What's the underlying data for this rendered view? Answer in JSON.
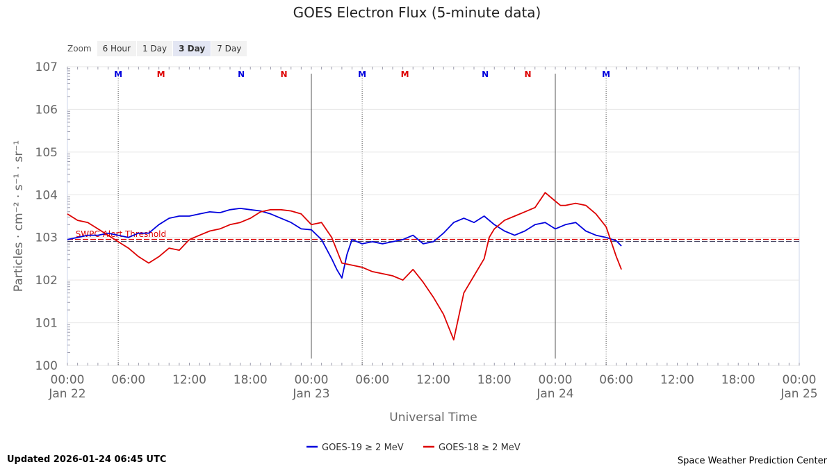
{
  "title": "GOES Electron Flux (5-minute data)",
  "zoom": {
    "label": "Zoom",
    "buttons": [
      "6 Hour",
      "1 Day",
      "3 Day",
      "7 Day"
    ],
    "active": "3 Day"
  },
  "footer": {
    "updated": "Updated 2026-01-24 06:45 UTC",
    "credit": "Space Weather Prediction Center"
  },
  "chart_data": {
    "type": "line",
    "title": "GOES Electron Flux (5-minute data)",
    "xlabel": "Universal Time",
    "ylabel": "Particles · cm⁻² · s⁻¹ · sr⁻¹",
    "y_scale": "log",
    "y_range_exponent": [
      0,
      7
    ],
    "y_ticks": [
      "10",
      "10",
      "10",
      "10",
      "10",
      "10",
      "10",
      "10"
    ],
    "y_tick_exponents": [
      "0",
      "1",
      "2",
      "3",
      "4",
      "5",
      "6",
      "7"
    ],
    "x_range_hours": [
      0,
      72
    ],
    "x_ticks": [
      "00:00",
      "06:00",
      "12:00",
      "18:00",
      "00:00",
      "06:00",
      "12:00",
      "18:00",
      "00:00",
      "06:00",
      "12:00",
      "18:00",
      "00:00"
    ],
    "x_day_labels": [
      "Jan 22",
      "Jan 23",
      "Jan 24",
      "Jan 25"
    ],
    "x_day_label_hours": [
      0,
      24,
      48,
      72
    ],
    "day_boundaries_hours": [
      24,
      48
    ],
    "threshold": {
      "label": "SWPC Alert Threshold",
      "value_exponent": 2.93,
      "color": "#dd0000"
    },
    "markers": [
      {
        "label": "M",
        "hour": 5,
        "color": "#0000dd"
      },
      {
        "label": "M",
        "hour": 9.2,
        "color": "#dd0000"
      },
      {
        "label": "N",
        "hour": 17.1,
        "color": "#0000dd"
      },
      {
        "label": "N",
        "hour": 21.3,
        "color": "#dd0000"
      },
      {
        "label": "M",
        "hour": 29,
        "color": "#0000dd"
      },
      {
        "label": "M",
        "hour": 33.2,
        "color": "#dd0000"
      },
      {
        "label": "N",
        "hour": 41.1,
        "color": "#0000dd"
      },
      {
        "label": "N",
        "hour": 45.3,
        "color": "#dd0000"
      },
      {
        "label": "M",
        "hour": 53,
        "color": "#0000dd"
      }
    ],
    "series": [
      {
        "name": "GOES-19 ≥ 2 MeV",
        "color": "#0000dd",
        "x": [
          0,
          1,
          2,
          3,
          4,
          5,
          6,
          7,
          8,
          9,
          10,
          11,
          12,
          13,
          14,
          15,
          16,
          17,
          18,
          19,
          20,
          21,
          22,
          23,
          24,
          25,
          26,
          26.5,
          27,
          27.5,
          28,
          29,
          30,
          31,
          32,
          33,
          34,
          35,
          36,
          37,
          38,
          39,
          40,
          41,
          42,
          43,
          44,
          45,
          46,
          47,
          48,
          49,
          50,
          51,
          52,
          53,
          54,
          54.5
        ],
        "y": [
          2.95,
          3.0,
          3.05,
          3.05,
          3.1,
          3.05,
          3.0,
          3.1,
          3.1,
          3.3,
          3.45,
          3.5,
          3.5,
          3.55,
          3.6,
          3.58,
          3.65,
          3.68,
          3.65,
          3.62,
          3.55,
          3.45,
          3.35,
          3.2,
          3.18,
          2.95,
          2.5,
          2.25,
          2.05,
          2.6,
          2.95,
          2.85,
          2.9,
          2.85,
          2.9,
          2.95,
          3.05,
          2.85,
          2.9,
          3.1,
          3.35,
          3.45,
          3.35,
          3.5,
          3.3,
          3.15,
          3.05,
          3.15,
          3.3,
          3.35,
          3.2,
          3.3,
          3.35,
          3.15,
          3.05,
          3.0,
          2.92,
          2.8
        ]
      },
      {
        "name": "GOES-18 ≥ 2 MeV",
        "color": "#dd0000",
        "x": [
          0,
          1,
          2,
          3,
          4,
          5,
          6,
          7,
          8,
          9,
          10,
          11,
          12,
          13,
          14,
          15,
          16,
          17,
          18,
          19,
          20,
          21,
          22,
          23,
          24,
          25,
          26,
          27,
          28,
          29,
          30,
          31,
          32,
          33,
          34,
          35,
          36,
          37,
          38,
          39,
          40,
          41,
          41.5,
          42,
          43,
          44,
          45,
          46,
          47,
          48,
          48.5,
          49,
          50,
          51,
          52,
          53,
          54,
          54.5
        ],
        "y": [
          3.55,
          3.4,
          3.35,
          3.2,
          3.05,
          2.9,
          2.75,
          2.55,
          2.4,
          2.55,
          2.75,
          2.7,
          2.95,
          3.05,
          3.15,
          3.2,
          3.3,
          3.35,
          3.45,
          3.6,
          3.65,
          3.65,
          3.62,
          3.55,
          3.3,
          3.35,
          3.0,
          2.4,
          2.35,
          2.3,
          2.2,
          2.15,
          2.1,
          2.0,
          2.25,
          1.95,
          1.6,
          1.2,
          0.6,
          1.7,
          2.1,
          2.5,
          3.0,
          3.2,
          3.4,
          3.5,
          3.6,
          3.7,
          4.05,
          3.85,
          3.75,
          3.75,
          3.8,
          3.75,
          3.55,
          3.25,
          2.55,
          2.25
        ]
      }
    ]
  }
}
